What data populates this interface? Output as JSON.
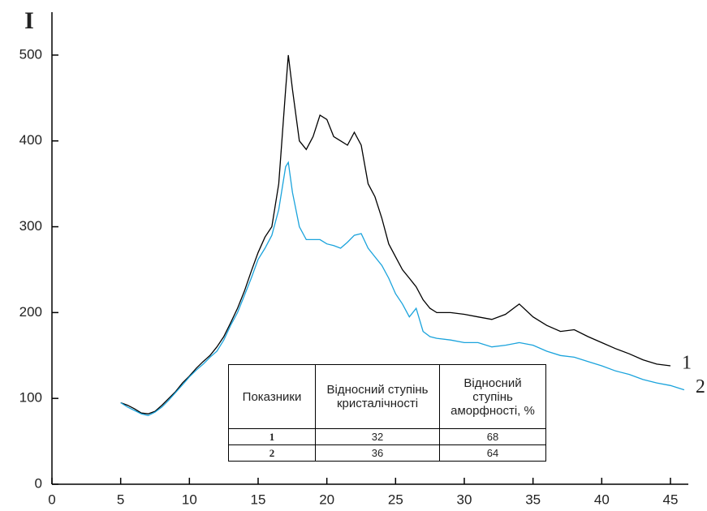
{
  "chart_data": {
    "type": "line",
    "y_label": "I",
    "xlim": [
      0,
      46.3
    ],
    "ylim": [
      0,
      550
    ],
    "xticks": [
      0,
      5,
      10,
      15,
      20,
      25,
      30,
      35,
      40,
      45
    ],
    "yticks": [
      0,
      100,
      200,
      300,
      400,
      500
    ],
    "series": [
      {
        "name": "1",
        "color": "#000000",
        "x": [
          5,
          5.5,
          6,
          6.5,
          7,
          7.5,
          8,
          8.5,
          9,
          9.5,
          10,
          10.5,
          11,
          11.5,
          12,
          12.5,
          13,
          13.5,
          14,
          14.5,
          15,
          15.5,
          16,
          16.5,
          17,
          17.2,
          17.5,
          18,
          18.5,
          19,
          19.5,
          20,
          20.5,
          21,
          21.5,
          22,
          22.5,
          23,
          23.5,
          24,
          24.5,
          25,
          25.5,
          26,
          26.5,
          27,
          27.5,
          28,
          29,
          30,
          31,
          32,
          33,
          34,
          35,
          36,
          37,
          38,
          39,
          40,
          41,
          42,
          43,
          44,
          45
        ],
        "values": [
          95,
          92,
          88,
          83,
          82,
          85,
          92,
          100,
          108,
          118,
          126,
          135,
          143,
          150,
          160,
          172,
          188,
          205,
          225,
          248,
          270,
          288,
          300,
          350,
          460,
          500,
          460,
          400,
          390,
          405,
          430,
          425,
          405,
          400,
          395,
          410,
          395,
          350,
          335,
          310,
          280,
          265,
          250,
          240,
          230,
          215,
          205,
          200,
          200,
          198,
          195,
          192,
          198,
          210,
          195,
          185,
          178,
          180,
          172,
          165,
          158,
          152,
          145,
          140,
          138
        ]
      },
      {
        "name": "2",
        "color": "#1aa3dc",
        "x": [
          5,
          5.5,
          6,
          6.5,
          7,
          7.5,
          8,
          8.5,
          9,
          9.5,
          10,
          10.5,
          11,
          11.5,
          12,
          12.5,
          13,
          13.5,
          14,
          14.5,
          15,
          15.5,
          16,
          16.5,
          17,
          17.2,
          17.5,
          18,
          18.5,
          19,
          19.5,
          20,
          20.5,
          21,
          21.5,
          22,
          22.5,
          23,
          23.5,
          24,
          24.5,
          25,
          25.5,
          26,
          26.5,
          27,
          27.5,
          28,
          29,
          30,
          31,
          32,
          33,
          34,
          35,
          36,
          37,
          38,
          39,
          40,
          41,
          42,
          43,
          44,
          45,
          46
        ],
        "values": [
          95,
          90,
          86,
          82,
          80,
          84,
          90,
          98,
          107,
          116,
          125,
          133,
          140,
          148,
          155,
          168,
          185,
          200,
          220,
          240,
          262,
          275,
          290,
          320,
          370,
          375,
          340,
          300,
          285,
          285,
          285,
          280,
          278,
          275,
          282,
          290,
          292,
          275,
          265,
          255,
          240,
          222,
          210,
          195,
          205,
          178,
          172,
          170,
          168,
          165,
          165,
          160,
          162,
          165,
          162,
          155,
          150,
          148,
          143,
          138,
          132,
          128,
          122,
          118,
          115,
          110
        ]
      }
    ],
    "table": {
      "header": [
        "Показники",
        "Відносний ступінь кристалічності",
        "Відносний ступінь аморфності, %"
      ],
      "rows": [
        [
          "1",
          32,
          68
        ],
        [
          "2",
          36,
          64
        ]
      ]
    }
  }
}
